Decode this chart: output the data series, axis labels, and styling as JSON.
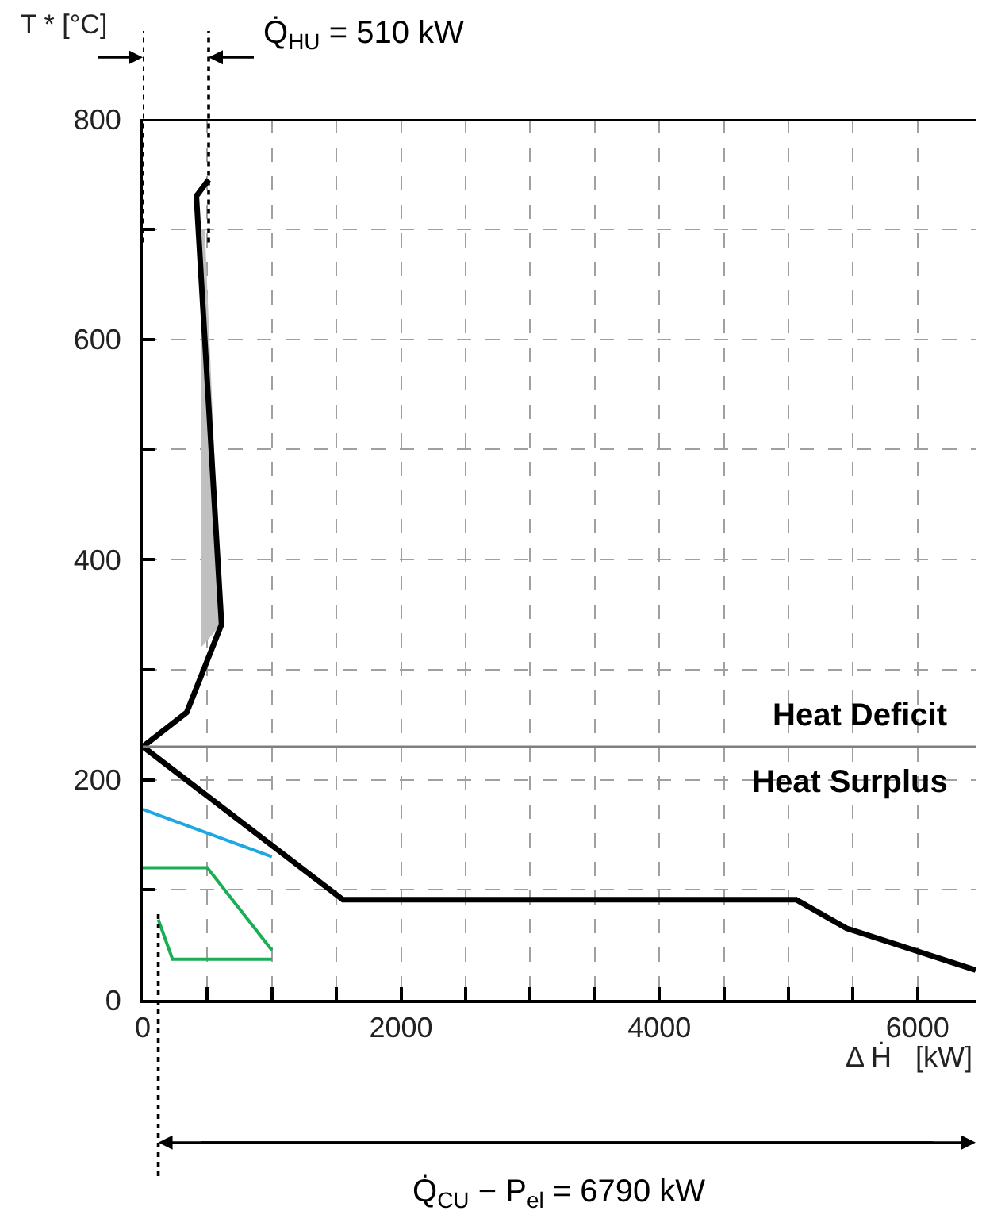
{
  "chart_data": {
    "type": "line",
    "xlabel": "Δ Ḣ   [kW]",
    "ylabel": "T * [°C]",
    "xlim": [
      0,
      6450
    ],
    "ylim": [
      0,
      800
    ],
    "xticks": [
      0,
      {
        "value": 500,
        "label": null
      },
      {
        "value": 1000,
        "label": null
      },
      {
        "value": 1500,
        "label": null
      },
      2000,
      {
        "value": 2500,
        "label": null
      },
      {
        "value": 3000,
        "label": null
      },
      {
        "value": 3500,
        "label": null
      },
      4000,
      {
        "value": 4500,
        "label": null
      },
      {
        "value": 5000,
        "label": null
      },
      {
        "value": 5500,
        "label": null
      },
      6000
    ],
    "yticks": [
      0,
      {
        "value": 100,
        "label": null
      },
      200,
      {
        "value": 300,
        "label": null
      },
      400,
      {
        "value": 500,
        "label": null
      },
      600,
      {
        "value": 700,
        "label": null
      },
      800
    ],
    "grid": true,
    "legend": false,
    "line_style": "solid",
    "marker": "none",
    "series": [
      {
        "type": "area",
        "color": "#c0c0c0",
        "x": [
          450,
          450,
          480,
          610
        ],
        "values": [
          320,
          700,
          700,
          341
        ]
      },
      {
        "color": "#000000",
        "x": [
          510,
          415,
          610,
          340,
          0,
          1550,
          5060,
          5450,
          6450
        ],
        "values": [
          745,
          730,
          341,
          261,
          230,
          91,
          91,
          65,
          27
        ]
      },
      {
        "color": "#1ea7e1",
        "x": [
          0,
          1000
        ],
        "values": [
          173,
          130
        ]
      },
      {
        "color": "#1aaf54",
        "x": [
          0,
          500,
          1000
        ],
        "values": [
          120,
          120,
          45
        ]
      },
      {
        "color": "#1aaf54",
        "x": [
          120,
          230,
          1000
        ],
        "values": [
          73,
          37,
          37
        ]
      }
    ],
    "ref_lines": [
      {
        "axis": "y",
        "value": 230,
        "color": "#808080",
        "line_style": "solid"
      },
      {
        "axis": "x",
        "value": 0,
        "color": "#000000",
        "line_style": "dotted"
      },
      {
        "axis": "x",
        "value": 510,
        "color": "#000000",
        "line_style": "dotted"
      },
      {
        "axis": "x",
        "value": 120,
        "color": "#000000",
        "line_style": "dotted"
      }
    ],
    "annotations": [
      {
        "text": "Heat Deficit",
        "x": 6250,
        "y": 230
      },
      {
        "text": "Heat Surplus",
        "x": 6250,
        "y": 230
      },
      "Q̇$_{HU}$ = 510 kW",
      "Q̇$_{CU}$ − P$_{el}$ = 6790 kW"
    ]
  }
}
